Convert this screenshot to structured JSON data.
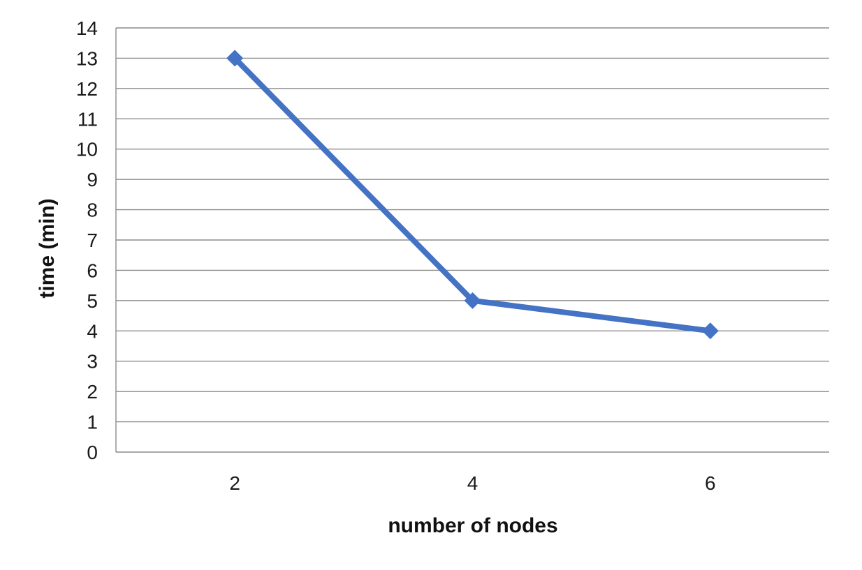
{
  "chart_data": {
    "type": "line",
    "title": "",
    "xlabel": "number of nodes",
    "ylabel": "time  (min)",
    "categories": [
      "2",
      "4",
      "6"
    ],
    "series": [
      {
        "values": [
          13,
          5,
          4
        ],
        "color": "#4472C4",
        "marker": "diamond"
      }
    ],
    "ylim": [
      0,
      14
    ],
    "yticks": [
      "0",
      "1",
      "2",
      "3",
      "4",
      "5",
      "6",
      "7",
      "8",
      "9",
      "10",
      "11",
      "12",
      "13",
      "14"
    ],
    "grid": true,
    "gridline_color": "#8c8c8c",
    "legend": "none"
  }
}
